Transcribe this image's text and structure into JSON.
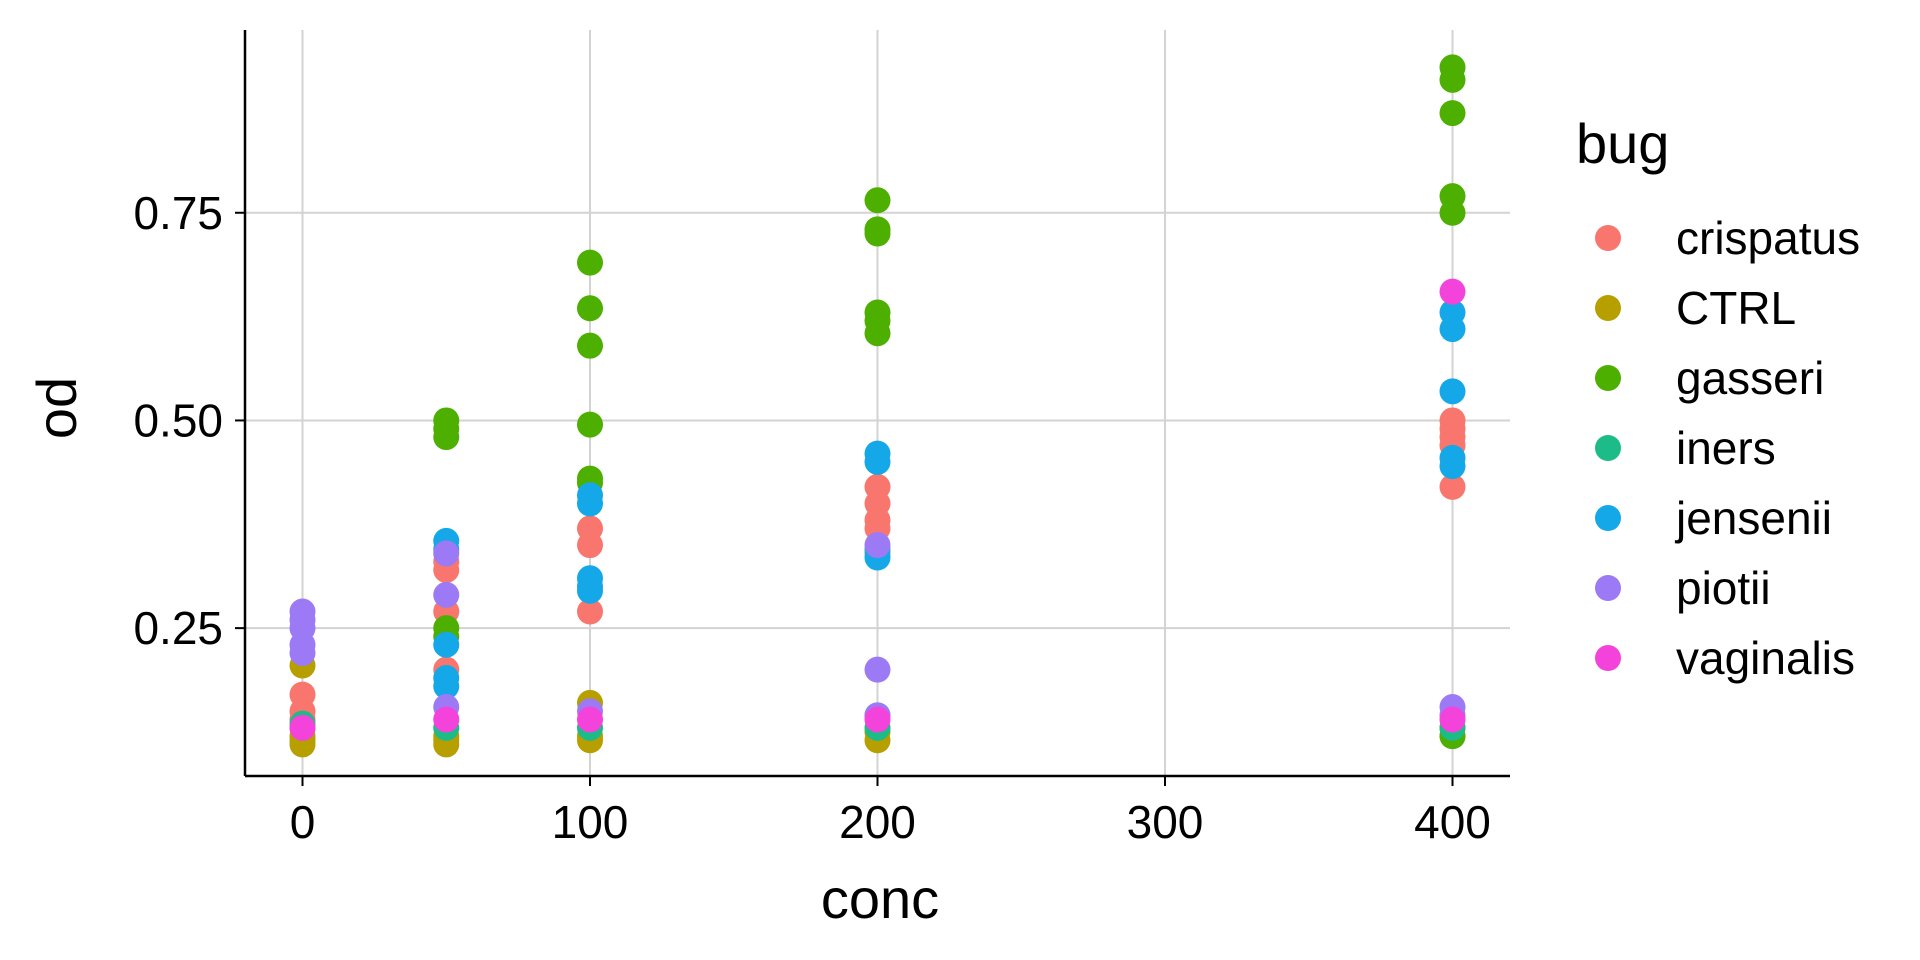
{
  "chart_data": {
    "type": "scatter",
    "xlabel": "conc",
    "ylabel": "od",
    "xlim": [
      -20,
      420
    ],
    "ylim": [
      0.072,
      0.97
    ],
    "x_ticks": [
      0,
      100,
      200,
      300,
      400
    ],
    "x_tick_labels": [
      "0",
      "100",
      "200",
      "300",
      "400"
    ],
    "y_ticks": [
      0.25,
      0.5,
      0.75
    ],
    "y_tick_labels": [
      "0.25",
      "0.50",
      "0.75"
    ],
    "grid": true,
    "legend": {
      "title": "bug",
      "position": "right"
    },
    "series": [
      {
        "name": "crispatus",
        "color": "#F8766D",
        "points": [
          [
            0,
            0.17
          ],
          [
            0,
            0.15
          ],
          [
            0,
            0.14
          ],
          [
            0,
            0.13
          ],
          [
            50,
            0.33
          ],
          [
            50,
            0.32
          ],
          [
            50,
            0.27
          ],
          [
            50,
            0.2
          ],
          [
            100,
            0.37
          ],
          [
            100,
            0.35
          ],
          [
            100,
            0.27
          ],
          [
            200,
            0.42
          ],
          [
            200,
            0.4
          ],
          [
            200,
            0.38
          ],
          [
            200,
            0.37
          ],
          [
            400,
            0.5
          ],
          [
            400,
            0.49
          ],
          [
            400,
            0.48
          ],
          [
            400,
            0.47
          ],
          [
            400,
            0.42
          ]
        ]
      },
      {
        "name": "CTRL",
        "color": "#B79F00",
        "points": [
          [
            0,
            0.205
          ],
          [
            0,
            0.12
          ],
          [
            0,
            0.115
          ],
          [
            0,
            0.11
          ],
          [
            50,
            0.12
          ],
          [
            50,
            0.115
          ],
          [
            50,
            0.11
          ],
          [
            100,
            0.16
          ],
          [
            100,
            0.12
          ],
          [
            100,
            0.115
          ],
          [
            200,
            0.34
          ],
          [
            200,
            0.125
          ],
          [
            200,
            0.115
          ],
          [
            400,
            0.13
          ],
          [
            400,
            0.12
          ]
        ]
      },
      {
        "name": "gasseri",
        "color": "#4DAF00",
        "points": [
          [
            50,
            0.5
          ],
          [
            50,
            0.49
          ],
          [
            50,
            0.48
          ],
          [
            50,
            0.25
          ],
          [
            50,
            0.24
          ],
          [
            100,
            0.69
          ],
          [
            100,
            0.635
          ],
          [
            100,
            0.59
          ],
          [
            100,
            0.495
          ],
          [
            100,
            0.43
          ],
          [
            100,
            0.425
          ],
          [
            200,
            0.765
          ],
          [
            200,
            0.73
          ],
          [
            200,
            0.725
          ],
          [
            200,
            0.63
          ],
          [
            200,
            0.62
          ],
          [
            200,
            0.605
          ],
          [
            400,
            0.925
          ],
          [
            400,
            0.91
          ],
          [
            400,
            0.87
          ],
          [
            400,
            0.77
          ],
          [
            400,
            0.75
          ],
          [
            400,
            0.12
          ]
        ]
      },
      {
        "name": "iners",
        "color": "#1CBB87",
        "points": [
          [
            0,
            0.135
          ],
          [
            50,
            0.13
          ],
          [
            100,
            0.13
          ],
          [
            200,
            0.13
          ],
          [
            400,
            0.13
          ]
        ]
      },
      {
        "name": "jensenii",
        "color": "#15A8E8",
        "points": [
          [
            50,
            0.355
          ],
          [
            50,
            0.345
          ],
          [
            50,
            0.23
          ],
          [
            50,
            0.19
          ],
          [
            50,
            0.18
          ],
          [
            100,
            0.41
          ],
          [
            100,
            0.4
          ],
          [
            100,
            0.31
          ],
          [
            100,
            0.3
          ],
          [
            100,
            0.295
          ],
          [
            200,
            0.46
          ],
          [
            200,
            0.45
          ],
          [
            200,
            0.345
          ],
          [
            200,
            0.335
          ],
          [
            200,
            0.145
          ],
          [
            400,
            0.63
          ],
          [
            400,
            0.61
          ],
          [
            400,
            0.535
          ],
          [
            400,
            0.455
          ],
          [
            400,
            0.445
          ]
        ]
      },
      {
        "name": "piotii",
        "color": "#9C7AF6",
        "points": [
          [
            0,
            0.27
          ],
          [
            0,
            0.26
          ],
          [
            0,
            0.25
          ],
          [
            0,
            0.23
          ],
          [
            0,
            0.22
          ],
          [
            50,
            0.34
          ],
          [
            50,
            0.29
          ],
          [
            50,
            0.155
          ],
          [
            100,
            0.15
          ],
          [
            200,
            0.35
          ],
          [
            200,
            0.2
          ],
          [
            200,
            0.145
          ],
          [
            400,
            0.155
          ],
          [
            400,
            0.145
          ]
        ]
      },
      {
        "name": "vaginalis",
        "color": "#F443DB",
        "points": [
          [
            0,
            0.13
          ],
          [
            50,
            0.14
          ],
          [
            100,
            0.14
          ],
          [
            200,
            0.14
          ],
          [
            400,
            0.655
          ],
          [
            400,
            0.14
          ]
        ]
      }
    ]
  }
}
